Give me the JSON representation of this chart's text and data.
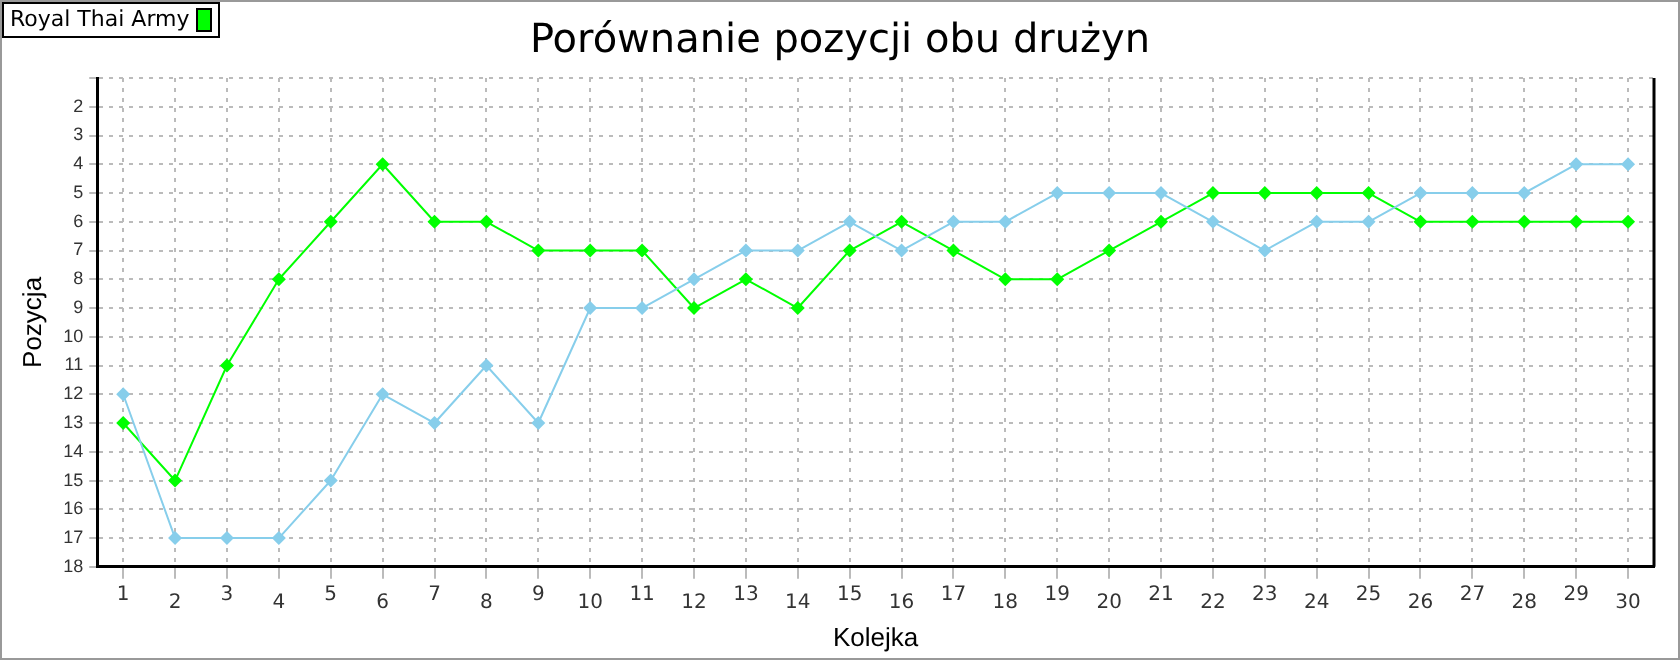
{
  "chart_data": {
    "type": "line",
    "title": "Porównanie pozycji obu drużyn",
    "xlabel": "Kolejka",
    "ylabel": "Pozycja",
    "categories": [
      "1",
      "2",
      "3",
      "4",
      "5",
      "6",
      "7",
      "8",
      "9",
      "10",
      "11",
      "12",
      "13",
      "14",
      "15",
      "16",
      "17",
      "18",
      "19",
      "20",
      "21",
      "22",
      "23",
      "24",
      "25",
      "26",
      "27",
      "28",
      "29",
      "30"
    ],
    "series": [
      {
        "color": "#87ceeb",
        "values": [
          12,
          17,
          17,
          17,
          15,
          12,
          13,
          11,
          13,
          9,
          9,
          8,
          7,
          7,
          6,
          7,
          6,
          6,
          5,
          5,
          5,
          6,
          7,
          6,
          6,
          5,
          5,
          5,
          4,
          4
        ]
      },
      {
        "name": "Royal Thai Army",
        "color": "#00ff00",
        "values": [
          13,
          15,
          11,
          8,
          6,
          4,
          6,
          6,
          7,
          7,
          7,
          9,
          8,
          9,
          7,
          6,
          7,
          8,
          8,
          7,
          6,
          5,
          5,
          5,
          5,
          6,
          6,
          6,
          6,
          6
        ]
      }
    ],
    "ylim": [
      18,
      1
    ],
    "yticks": [
      {
        "value": 1,
        "label": null
      },
      2,
      3,
      4,
      5,
      6,
      7,
      8,
      9,
      10,
      11,
      12,
      13,
      14,
      15,
      16,
      17,
      18
    ],
    "grid": true,
    "legend": "top left",
    "marker": "diamond",
    "line_style": "solid"
  }
}
